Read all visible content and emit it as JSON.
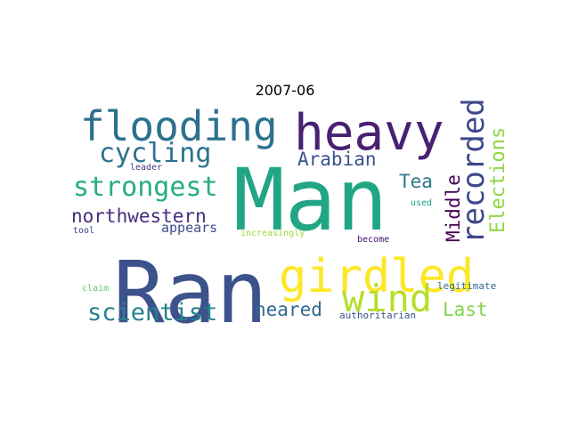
{
  "title": "2007-06",
  "words": [
    {
      "text": "Ran",
      "color": "#3b528b"
    },
    {
      "text": "Man",
      "color": "#21a685"
    },
    {
      "text": "heavy",
      "color": "#482173"
    },
    {
      "text": "girdled",
      "color": "#fde725"
    },
    {
      "text": "flooding",
      "color": "#2c718e"
    },
    {
      "text": "wind",
      "color": "#b5de2b"
    },
    {
      "text": "recorded",
      "color": "#3e4989"
    },
    {
      "text": "strongest",
      "color": "#27ad81"
    },
    {
      "text": "cycling",
      "color": "#2c728e"
    },
    {
      "text": "scientist",
      "color": "#26828e"
    },
    {
      "text": "northwestern",
      "color": "#472d7b"
    },
    {
      "text": "Elections",
      "color": "#8fd744"
    },
    {
      "text": "Middle",
      "color": "#440154"
    },
    {
      "text": "Arabian",
      "color": "#3b528b"
    },
    {
      "text": "neared",
      "color": "#31688e"
    },
    {
      "text": "Last",
      "color": "#84d44b"
    },
    {
      "text": "Tea",
      "color": "#2a788e"
    },
    {
      "text": "appears",
      "color": "#3e4a89"
    },
    {
      "text": "increasingly",
      "color": "#a2da37"
    },
    {
      "text": "legitimate",
      "color": "#31688e"
    },
    {
      "text": "authoritarian",
      "color": "#3b528b"
    },
    {
      "text": "leader",
      "color": "#443983"
    },
    {
      "text": "tool",
      "color": "#3e4989"
    },
    {
      "text": "used",
      "color": "#20a386"
    },
    {
      "text": "become",
      "color": "#3b0f70"
    },
    {
      "text": "claim",
      "color": "#5ec962"
    }
  ]
}
